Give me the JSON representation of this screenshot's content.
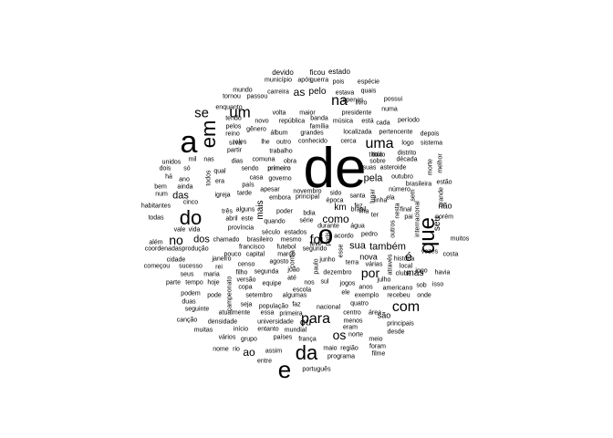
{
  "words": [
    "de",
    "a",
    "o",
    "e",
    "da",
    "que",
    "em",
    "do",
    "um",
    "uma",
    "para",
    "com",
    "no",
    "na",
    "se",
    "os",
    "por",
    "foi",
    "como",
    "as",
    "sua",
    "dos",
    "das",
    "ao",
    "é",
    "mais",
    "também",
    "pela",
    "ou",
    "mas",
    "não",
    "seu",
    "pelo",
    "nova",
    "primeiro",
    "estado",
    "devido",
    "ficou",
    "município",
    "após",
    "guerra",
    "pois",
    "espécie",
    "mundo",
    "carreira",
    "estava",
    "quais",
    "tornou",
    "passou",
    "livro",
    "possui",
    "enquanto",
    "volta",
    "maior",
    "apenas",
    "numa",
    "tendo",
    "novo",
    "república",
    "banda",
    "música",
    "presidente",
    "família",
    "está",
    "cada",
    "período",
    "pelos",
    "gênero",
    "álbum",
    "grandes",
    "localizada",
    "pertencente",
    "depois",
    "reino",
    "eles",
    "lhe",
    "outro",
    "conhecido",
    "cerca",
    "logo",
    "sistema",
    "silva",
    "partir",
    "trabalho",
    "titulo",
    "década",
    "unidos",
    "mil",
    "nas",
    "dias",
    "comuna",
    "obra",
    "sobre",
    "suas",
    "asteroide",
    "outubro",
    "melhor",
    "dois",
    "só",
    "qual",
    "sendo",
    "primeiro",
    "distrito",
    "estão",
    "há",
    "ano",
    "era",
    "país",
    "casa",
    "governo",
    "novembro",
    "brasileira",
    "bem",
    "ainda",
    "tarde",
    "apesar",
    "principal",
    "época",
    "santa",
    "num",
    "cinco",
    "igreja",
    "embora",
    "sido",
    "cidade",
    "final",
    "grande",
    "habitantes",
    "três",
    "alguns",
    "quando",
    "km",
    "poder",
    "bdia",
    "porém",
    "todas",
    "abril",
    "este",
    "série",
    "brasil",
    "fez",
    "linha",
    "durante",
    "água",
    "ilha",
    "pedro",
    "vezes",
    "além",
    "vale",
    "vida",
    "província",
    "século",
    "estados",
    "acordo",
    "muitos",
    "coordenadas",
    "produção",
    "chamado",
    "brasileiro",
    "mesmo",
    "teve",
    "história",
    "costa",
    "francisco",
    "futebol",
    "segundo",
    "jogo",
    "havia",
    "pouco",
    "capital",
    "março",
    "terra",
    "local",
    "começou",
    "sucesso",
    "rei",
    "censo",
    "agosto",
    "junho",
    "várias",
    "clube",
    "seus",
    "maria",
    "filho",
    "segunda",
    "joão",
    "dezembro",
    "americano",
    "parte",
    "tempo",
    "hoje",
    "copa",
    "equipe",
    "nos",
    "jogos",
    "recebeu",
    "isso",
    "podem",
    "pode",
    "setembro",
    "algumas",
    "escola",
    "exemplo",
    "onde",
    "duas",
    "campeonato",
    "seja",
    "população",
    "faz",
    "nacional",
    "quatro",
    "seguinte",
    "atualmente",
    "essa",
    "primeira",
    "centro",
    "área",
    "são",
    "canção",
    "densidade",
    "universidade",
    "menos",
    "principais",
    "muitas",
    "início",
    "entanto",
    "mundial",
    "eram",
    "desde",
    "vários",
    "grupo",
    "países",
    "frança",
    "norte",
    "meio",
    "nome",
    "rio",
    "assim",
    "maio",
    "região",
    "foram",
    "entre",
    "programa",
    "filme",
    "português",
    "versão",
    "sul",
    "julho",
    "outros",
    "número",
    "anos",
    "lugar",
    "ter",
    "ela",
    "pai",
    "ele",
    "sob",
    "através",
    "internacional",
    "morte",
    "todos",
    "janeiro",
    "sem",
    "nesta",
    "esse",
    "contra",
    "paulo",
    "até",
    "paris",
    "título"
  ]
}
